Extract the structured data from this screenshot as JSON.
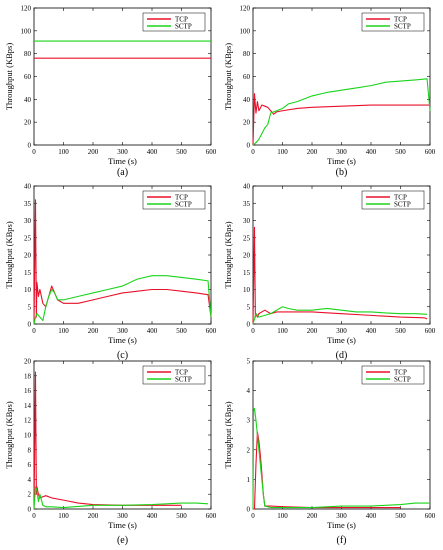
{
  "chart_data": [
    {
      "type": "line",
      "caption": "(a)",
      "xlabel": "Time (s)",
      "ylabel": "Throughput (KBps)",
      "xlim": [
        0,
        600
      ],
      "ylim": [
        0,
        120
      ],
      "xticks": [
        0,
        100,
        200,
        300,
        400,
        500,
        600
      ],
      "yticks": [
        0,
        20,
        40,
        60,
        80,
        100,
        120
      ],
      "legend": "top-right",
      "series": [
        {
          "name": "TCP",
          "color": "#e8102a",
          "x": [
            0,
            100,
            200,
            300,
            400,
            500,
            600
          ],
          "y": [
            76,
            76,
            76,
            76,
            76,
            76,
            76
          ]
        },
        {
          "name": "SCTP",
          "color": "#1ad41a",
          "x": [
            0,
            100,
            200,
            300,
            400,
            500,
            600
          ],
          "y": [
            91,
            91,
            91,
            91,
            91,
            91,
            91
          ]
        }
      ]
    },
    {
      "type": "line",
      "caption": "(b)",
      "xlabel": "Time (s)",
      "ylabel": "Throughput (KBps)",
      "xlim": [
        0,
        600
      ],
      "ylim": [
        0,
        120
      ],
      "xticks": [
        0,
        100,
        200,
        300,
        400,
        500,
        600
      ],
      "yticks": [
        0,
        20,
        40,
        60,
        80,
        100,
        120
      ],
      "legend": "top-right",
      "series": [
        {
          "name": "TCP",
          "color": "#e8102a",
          "x": [
            0,
            5,
            10,
            15,
            20,
            30,
            40,
            50,
            60,
            70,
            80,
            100,
            150,
            200,
            300,
            400,
            500,
            600
          ],
          "y": [
            0,
            45,
            28,
            38,
            30,
            35,
            34,
            33,
            30,
            27,
            29,
            30,
            32,
            33,
            34,
            35,
            35,
            35
          ]
        },
        {
          "name": "SCTP",
          "color": "#1ad41a",
          "x": [
            0,
            10,
            20,
            30,
            40,
            50,
            60,
            80,
            100,
            120,
            150,
            200,
            250,
            300,
            350,
            400,
            450,
            500,
            550,
            590,
            600
          ],
          "y": [
            0,
            2,
            5,
            10,
            15,
            18,
            28,
            30,
            32,
            36,
            38,
            43,
            46,
            48,
            50,
            52,
            55,
            56,
            57,
            58,
            30
          ]
        }
      ]
    },
    {
      "type": "line",
      "caption": "(c)",
      "xlabel": "Time (s)",
      "ylabel": "Throughput (KBps)",
      "xlim": [
        0,
        600
      ],
      "ylim": [
        0,
        40
      ],
      "xticks": [
        0,
        100,
        200,
        300,
        400,
        500,
        600
      ],
      "yticks": [
        0,
        5,
        10,
        15,
        20,
        25,
        30,
        35,
        40
      ],
      "legend": "top-right",
      "series": [
        {
          "name": "TCP",
          "color": "#e8102a",
          "x": [
            0,
            5,
            8,
            10,
            15,
            20,
            30,
            40,
            50,
            60,
            70,
            80,
            100,
            150,
            200,
            250,
            300,
            350,
            400,
            450,
            500,
            550,
            590,
            600
          ],
          "y": [
            0,
            36,
            2,
            12,
            8,
            10,
            6,
            5,
            8,
            11,
            9,
            7,
            6,
            6,
            7,
            8,
            9,
            9.5,
            10,
            10,
            9.5,
            9,
            8.5,
            2
          ]
        },
        {
          "name": "SCTP",
          "color": "#1ad41a",
          "x": [
            0,
            5,
            10,
            20,
            30,
            40,
            50,
            60,
            70,
            80,
            100,
            150,
            200,
            250,
            300,
            350,
            400,
            450,
            500,
            550,
            590,
            600
          ],
          "y": [
            0,
            2,
            3,
            2,
            1,
            5,
            8,
            10,
            9,
            7,
            7,
            8,
            9,
            10,
            11,
            13,
            14,
            14,
            13.5,
            13,
            12.5,
            2
          ]
        }
      ]
    },
    {
      "type": "line",
      "caption": "(d)",
      "xlabel": "Time (s)",
      "ylabel": "Throughput (KBps)",
      "xlim": [
        0,
        600
      ],
      "ylim": [
        0,
        40
      ],
      "xticks": [
        0,
        100,
        200,
        300,
        400,
        500,
        600
      ],
      "yticks": [
        0,
        5,
        10,
        15,
        20,
        25,
        30,
        35,
        40
      ],
      "legend": "top-right",
      "series": [
        {
          "name": "TCP",
          "color": "#e8102a",
          "x": [
            0,
            5,
            8,
            10,
            15,
            20,
            40,
            60,
            80,
            100,
            150,
            200,
            300,
            400,
            500,
            580,
            590
          ],
          "y": [
            0,
            28,
            2,
            3,
            2,
            3,
            4,
            3,
            3.5,
            3.5,
            3.5,
            3.5,
            3,
            2.5,
            2,
            1.8,
            1.5
          ]
        },
        {
          "name": "SCTP",
          "color": "#1ad41a",
          "x": [
            0,
            10,
            20,
            40,
            60,
            80,
            100,
            120,
            150,
            200,
            250,
            300,
            350,
            400,
            450,
            500,
            550,
            590
          ],
          "y": [
            0,
            3,
            2,
            2.5,
            3,
            4,
            5,
            4.5,
            4,
            4,
            4.5,
            4,
            3.5,
            3.5,
            3.2,
            3,
            3,
            2.8
          ]
        }
      ]
    },
    {
      "type": "line",
      "caption": "(e)",
      "xlabel": "Time (s)",
      "ylabel": "Throughput (KBps)",
      "xlim": [
        0,
        600
      ],
      "ylim": [
        0,
        20
      ],
      "xticks": [
        0,
        100,
        200,
        300,
        400,
        500,
        600
      ],
      "yticks": [
        0,
        2,
        4,
        6,
        8,
        10,
        12,
        14,
        16,
        18,
        20
      ],
      "legend": "top-right",
      "series": [
        {
          "name": "TCP",
          "color": "#e8102a",
          "x": [
            0,
            5,
            8,
            10,
            15,
            20,
            40,
            60,
            100,
            150,
            200,
            300,
            400,
            500
          ],
          "y": [
            0,
            18.5,
            2,
            3,
            2,
            1.5,
            1.8,
            1.5,
            1.2,
            0.8,
            0.6,
            0.5,
            0.5,
            0.5
          ]
        },
        {
          "name": "SCTP",
          "color": "#1ad41a",
          "x": [
            0,
            5,
            10,
            15,
            20,
            30,
            40,
            60,
            100,
            200,
            300,
            400,
            500,
            550,
            590
          ],
          "y": [
            0,
            3,
            2.5,
            1,
            2,
            0.5,
            0.3,
            0.3,
            0.2,
            0.5,
            0.5,
            0.6,
            0.8,
            0.8,
            0.7
          ]
        }
      ]
    },
    {
      "type": "line",
      "caption": "(f)",
      "xlabel": "Time (s)",
      "ylabel": "Throughput (KBps)",
      "xlim": [
        0,
        600
      ],
      "ylim": [
        0,
        5
      ],
      "xticks": [
        0,
        100,
        200,
        300,
        400,
        500,
        600
      ],
      "yticks": [
        0,
        1,
        2,
        3,
        4,
        5
      ],
      "legend": "top-right",
      "series": [
        {
          "name": "TCP",
          "color": "#e8102a",
          "x": [
            0,
            5,
            10,
            15,
            20,
            25,
            30,
            35,
            40,
            50,
            60,
            100,
            200,
            300,
            400,
            500
          ],
          "y": [
            0,
            0,
            1.5,
            2.6,
            2.3,
            1.8,
            1.2,
            0.5,
            0.1,
            0.1,
            0.1,
            0.08,
            0.05,
            0.05,
            0.05,
            0.05
          ]
        },
        {
          "name": "SCTP",
          "color": "#1ad41a",
          "x": [
            0,
            2,
            5,
            10,
            15,
            20,
            25,
            30,
            35,
            40,
            60,
            100,
            200,
            300,
            400,
            500,
            550,
            600
          ],
          "y": [
            0,
            3.3,
            3.4,
            3,
            2.5,
            2,
            1.5,
            1,
            0.5,
            0.1,
            0.05,
            0.05,
            0.05,
            0.1,
            0.1,
            0.15,
            0.2,
            0.2
          ]
        }
      ]
    }
  ]
}
